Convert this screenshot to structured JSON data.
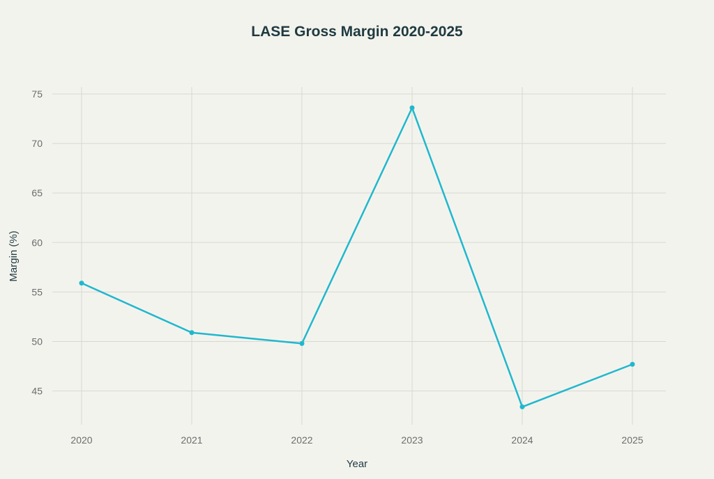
{
  "chart_data": {
    "type": "line",
    "title": "LASE Gross Margin 2020-2025",
    "xlabel": "Year",
    "ylabel": "Margin (%)",
    "x": [
      "2020",
      "2021",
      "2022",
      "2023",
      "2024",
      "2025"
    ],
    "series": [
      {
        "values": [
          55.9,
          50.9,
          49.8,
          73.6,
          43.4,
          47.7
        ]
      }
    ],
    "yticks": [
      45,
      50,
      55,
      60,
      65,
      70,
      75
    ],
    "ylim": [
      41.6,
      75.7
    ],
    "grid": true,
    "line_color": "#1fb8cd",
    "colors": {
      "background": "#f3f3ee",
      "grid": "#d8d8d3",
      "title": "#1f3a40",
      "tick": "#6b6b6b"
    }
  }
}
